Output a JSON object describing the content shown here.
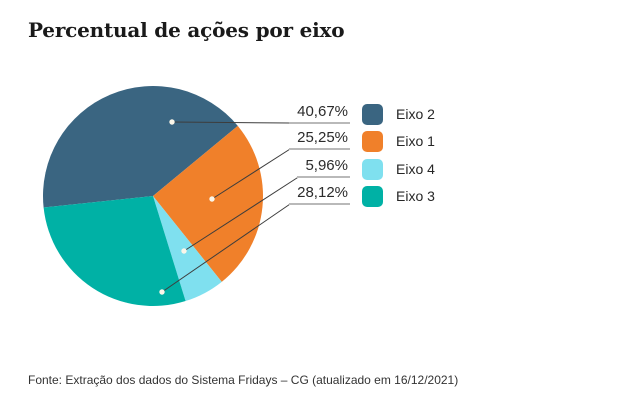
{
  "title": "Percentual de ações por eixo",
  "footer": "Fonte: Extração dos dados do Sistema Fridays – CG (atualizado em 16/12/2021)",
  "chart_data": {
    "type": "pie",
    "title": "Percentual de ações por eixo",
    "legend_position": "right",
    "start_angle_deg": 264,
    "direction": "clockwise",
    "slices": [
      {
        "label": "Eixo 2",
        "value": 40.67,
        "display": "40,67%",
        "color": "#3A6581"
      },
      {
        "label": "Eixo 1",
        "value": 25.25,
        "display": "25,25%",
        "color": "#F0802A"
      },
      {
        "label": "Eixo 4",
        "value": 5.96,
        "display": "5,96%",
        "color": "#7FE0EF"
      },
      {
        "label": "Eixo 3",
        "value": 28.12,
        "display": "28,12%",
        "color": "#00B1A5"
      }
    ],
    "leader_dot_color": "#FBF6E9",
    "leader_line_color": "#3d3d3d",
    "underline_color": "#b9b9b9"
  }
}
